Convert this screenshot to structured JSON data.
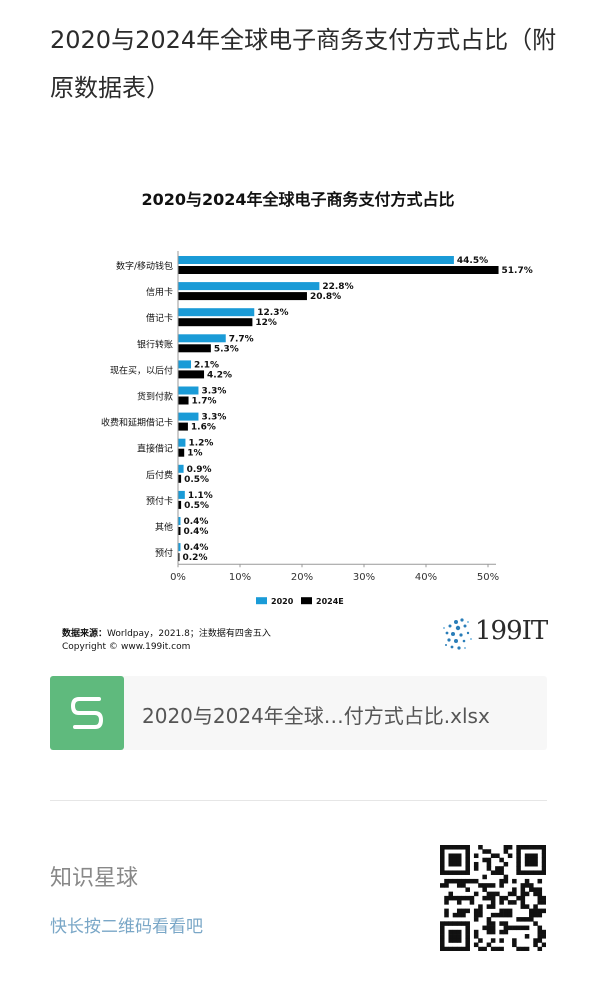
{
  "page": {
    "title": "2020与2024年全球电子商务支付方式占比（附原数据表）"
  },
  "chart_data": {
    "type": "bar",
    "orientation": "horizontal",
    "title": "2020与2024年全球电子商务支付方式占比",
    "categories": [
      "数字/移动钱包",
      "信用卡",
      "借记卡",
      "银行转账",
      "现在买，以后付",
      "货到付款",
      "收费和延期借记卡",
      "直接借记",
      "后付费",
      "预付卡",
      "其他",
      "预付"
    ],
    "series": [
      {
        "name": "2020",
        "color": "#1a9bd7",
        "values": [
          44.5,
          22.8,
          12.3,
          7.7,
          2.1,
          3.3,
          3.3,
          1.2,
          0.9,
          1.1,
          0.4,
          0.4
        ],
        "labels": [
          "44.5%",
          "22.8%",
          "12.3%",
          "7.7%",
          "2.1%",
          "3.3%",
          "3.3%",
          "1.2%",
          "0.9%",
          "1.1%",
          "0.4%",
          "0.4%"
        ]
      },
      {
        "name": "2024E",
        "color": "#000000",
        "values": [
          51.7,
          20.8,
          12,
          5.3,
          4.2,
          1.7,
          1.6,
          1,
          0.5,
          0.5,
          0.4,
          0.2
        ],
        "labels": [
          "51.7%",
          "20.8%",
          "12%",
          "5.3%",
          "4.2%",
          "1.7%",
          "1.6%",
          "1%",
          "0.5%",
          "0.5%",
          "0.4%",
          "0.2%"
        ]
      }
    ],
    "xlim": [
      0,
      50
    ],
    "xticks": [
      "0%",
      "10%",
      "20%",
      "30%",
      "40%",
      "50%"
    ],
    "grid": false,
    "legend": "bottom"
  },
  "footer": {
    "source_label": "数据来源：",
    "source_text": "Worldpay，2021.8；注数据有四舍五入",
    "copyright_label": "Copyright ©",
    "copyright_url": "www.199it.com",
    "logo_text": "199IT"
  },
  "attachment": {
    "icon": "spreadsheet-icon",
    "icon_color": "#5fba7d",
    "filename": "2020与2024年全球…付方式占比.xlsx"
  },
  "promo": {
    "brand": "知识星球",
    "hint": "快长按二维码看看吧"
  }
}
